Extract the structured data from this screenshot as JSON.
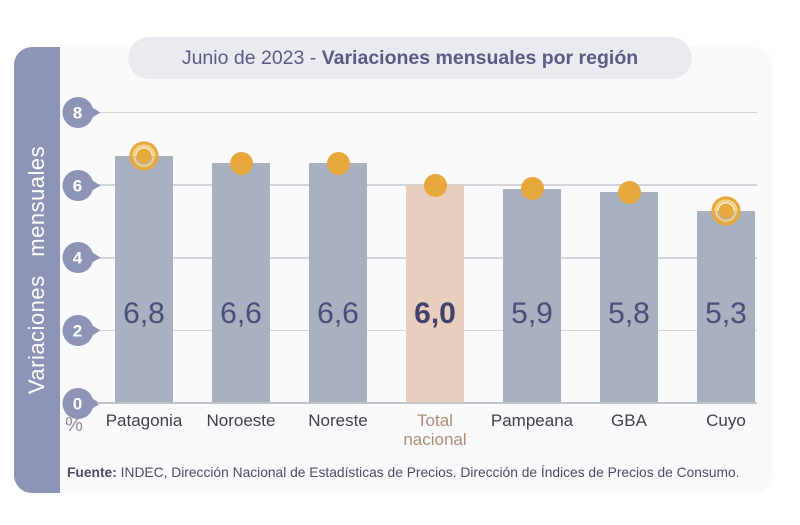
{
  "title": {
    "prefix": "Junio de 2023 - ",
    "emphasis": "Variaciones mensuales por región"
  },
  "sidebar": {
    "label": "Variaciones mensuales"
  },
  "axis": {
    "percent": "%"
  },
  "footer": {
    "bold": "Fuente:",
    "text": "INDEC, Dirección Nacional de Estadísticas de Precios. Dirección de Índices de Precios de Consumo."
  },
  "colors": {
    "sidebar": "#8d94b6",
    "card": "#fafafc",
    "pill": "#e9ebf0",
    "title_text": "#5c5b85",
    "bar": "#a9b1c0",
    "bar_highlight": "#e8cebc",
    "marker": "#e8a93c",
    "marker_ring_mid": "#f2cd7c",
    "grid": "#d2d4d8",
    "zero_line": "#bfc2c8",
    "tick": "#8d94b6",
    "value_text": "#4d4d7a",
    "category_text": "#40404b",
    "category_highlight_text": "#b08d77",
    "percent_text": "#8f8f9c",
    "footer_text": "#4c4c66"
  },
  "chart_data": {
    "type": "bar",
    "title": "Junio de 2023 - Variaciones mensuales por región",
    "ylabel": "Variaciones mensuales",
    "unit": "%",
    "ylim": [
      0,
      8
    ],
    "yticks": [
      0,
      2,
      4,
      6,
      8
    ],
    "grid": true,
    "legend": false,
    "categories": [
      "Patagonia",
      "Noroeste",
      "Noreste",
      "Total nacional",
      "Pampeana",
      "GBA",
      "Cuyo"
    ],
    "values": [
      6.8,
      6.6,
      6.6,
      6.0,
      5.9,
      5.8,
      5.3
    ],
    "value_labels": [
      "6,8",
      "6,6",
      "6,6",
      "6,0",
      "5,9",
      "5,8",
      "5,3"
    ],
    "highlight_index": 3,
    "ring_marker_indices": [
      0,
      6
    ],
    "category_lines": [
      [
        "Patagonia"
      ],
      [
        "Noroeste"
      ],
      [
        "Noreste"
      ],
      [
        "Total",
        "nacional"
      ],
      [
        "Pampeana"
      ],
      [
        "GBA"
      ],
      [
        "Cuyo"
      ]
    ]
  }
}
